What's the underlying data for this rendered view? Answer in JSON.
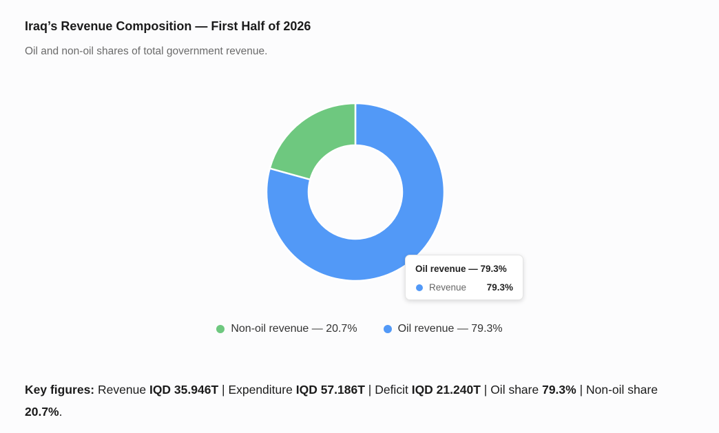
{
  "header": {
    "title": "Iraq’s Revenue Composition — First Half of 2026",
    "subtitle": "Oil and non-oil shares of total government revenue."
  },
  "colors": {
    "non_oil": "#6ec87f",
    "oil": "#5299f7"
  },
  "chart_data": {
    "type": "pie",
    "donut": true,
    "categories": [
      "Non-oil revenue",
      "Oil revenue"
    ],
    "series": [
      {
        "name": "Revenue",
        "values": [
          20.7,
          79.3
        ]
      }
    ],
    "unit": "%",
    "legend": "bottom",
    "legend_labels": [
      "Non-oil revenue — 20.7%",
      "Oil revenue — 79.3%"
    ]
  },
  "tooltip": {
    "title": "Oil revenue — 79.3%",
    "series_label": "Revenue",
    "value": "79.3%"
  },
  "key_figures": {
    "lead": "Key figures:",
    "revenue_label": "Revenue",
    "revenue_value": "IQD 35.946T",
    "expenditure_label": "Expenditure",
    "expenditure_value": "IQD 57.186T",
    "deficit_label": "Deficit",
    "deficit_value": "IQD 21.240T",
    "oil_share_label": "Oil share",
    "oil_share_value": "79.3%",
    "non_oil_share_label": "Non-oil share",
    "non_oil_share_value": "20.7%"
  }
}
